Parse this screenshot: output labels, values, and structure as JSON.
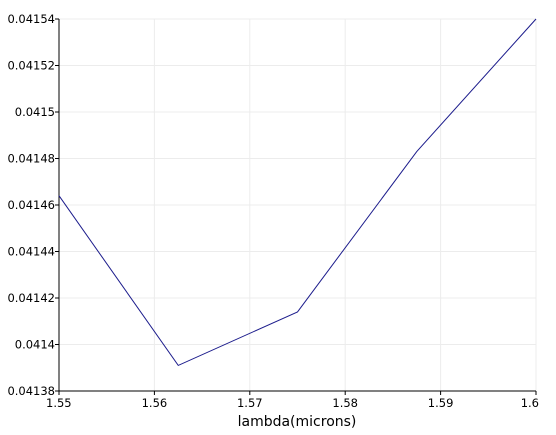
{
  "chart_data": {
    "type": "line",
    "title": "",
    "xlabel": "lambda(microns)",
    "ylabel": "",
    "xlim": [
      1.55,
      1.6
    ],
    "ylim": [
      0.04138,
      0.04154
    ],
    "x_ticks": [
      "1.55",
      "1.56",
      "1.57",
      "1.58",
      "1.59",
      "1.6"
    ],
    "y_ticks": [
      "0.04138",
      "0.0414",
      "0.04142",
      "0.04144",
      "0.04146",
      "0.04148",
      "0.0415",
      "0.04152",
      "0.04154"
    ],
    "grid": true,
    "series": [
      {
        "color": "#1c1c8c",
        "x": [
          1.55,
          1.5625,
          1.575,
          1.5875,
          1.6
        ],
        "y": [
          0.041464,
          0.041391,
          0.041414,
          0.041483,
          0.04154
        ]
      }
    ]
  }
}
